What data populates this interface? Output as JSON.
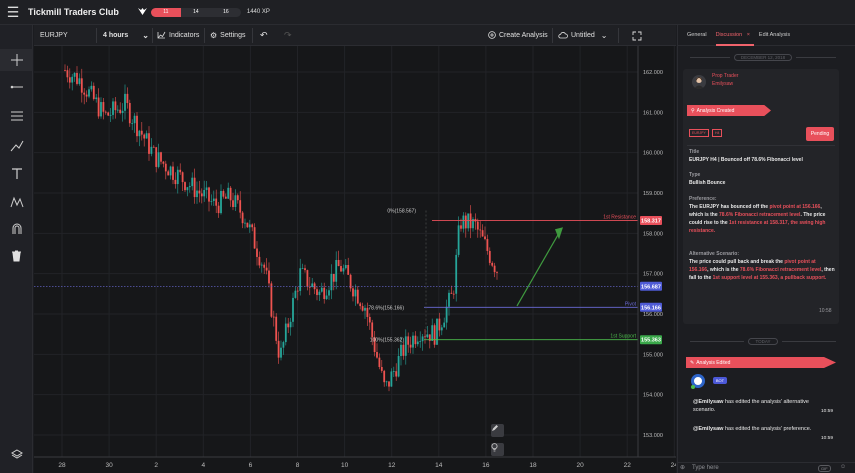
{
  "app": {
    "title": "Tickmill Traders Club",
    "xp_levels": [
      "11",
      "14",
      "16"
    ],
    "xp_total": "1440 XP"
  },
  "toolbar": {
    "symbol": "EURJPY",
    "interval": "4 hours",
    "indicators": "Indicators",
    "settings": "Settings",
    "create_analysis": "Create Analysis",
    "untitled": "Untitled"
  },
  "chart_data": {
    "type": "candlestick",
    "price_axis": [
      "162.000",
      "161.000",
      "160.000",
      "159.000",
      "158.000",
      "157.000",
      "156.000",
      "155.000",
      "154.000",
      "153.000"
    ],
    "time_axis": [
      "28",
      "30",
      "2",
      "4",
      "6",
      "8",
      "10",
      "12",
      "14",
      "16",
      "18",
      "20",
      "22",
      "24",
      "26",
      "28"
    ],
    "price_labels": {
      "resistance": "158.317",
      "current": "156.687",
      "pivot": "156.166",
      "support": "155.363"
    },
    "fib_levels": [
      {
        "label": "0%(158.567)",
        "price": 158.567
      },
      {
        "label": "78.6%(156.166)",
        "price": 156.166
      },
      {
        "label": "100%(155.362)",
        "price": 155.362
      }
    ],
    "lines": {
      "resistance": {
        "label": "1st Resistance",
        "price": 158.317,
        "color": "#e8505b"
      },
      "pivot": {
        "label": "Pivot",
        "price": 156.166,
        "color": "#6b6bd9"
      },
      "support": {
        "label": "1st Support",
        "price": 155.363,
        "color": "#4cbb4c"
      },
      "current": {
        "price": 156.687,
        "color": "#6b6bd9"
      }
    },
    "colors": {
      "up": "#26a69a",
      "down": "#ef5350",
      "arrow": "#3f9a3f"
    }
  },
  "panel": {
    "tabs": [
      "General",
      "Discussion",
      "Edit Analysis"
    ],
    "tab_close": "×",
    "date_1": "DECEMBER 12, 2018",
    "author_role": "Prop Trader",
    "author_name": "Emilysaw",
    "created_label": "Analysis Created",
    "tags": [
      "EURJPY",
      "H4"
    ],
    "status": "Pending",
    "title_label": "Title",
    "title_value": "EURJPY H4 | Bounced off 78.6% Fibonacci level",
    "type_label": "Type",
    "type_value": "Bullish Bounce",
    "pref_label": "Preference:",
    "pref_text_a": "The EURJPY has bounced off the ",
    "pref_hl_1": "pivot point at 156.166",
    "pref_text_b": ", which is the ",
    "pref_hl_2": "78.6% Fibonacci retracement level",
    "pref_text_c": ". The price could rise to the ",
    "pref_hl_3": "1st resistance at 158.317, the swing high resistance.",
    "alt_label": "Alternative Scenario:",
    "alt_text_a": "The price could pull back and break the ",
    "alt_hl_1": "pivot point at 156.166",
    "alt_text_b": ", which is the ",
    "alt_hl_2": "78.6% Fibonacci retracement level",
    "alt_text_c": ", then fall to the ",
    "alt_hl_3": "1st support level at 155.363, a pullback support.",
    "time_1": "10:58",
    "date_2": "TODAY",
    "edited_label": "Analysis Edited",
    "bot_badge": "BOT",
    "edit_1_user": "@Emilysaw",
    "edit_1_text": "has edited the analysis' alternative scenario.",
    "edit_1_time": "10:59",
    "edit_2_user": "@Emilysaw",
    "edit_2_text": "has edited the analysis' preference.",
    "edit_2_time": "10:59",
    "input_placeholder": "Type here",
    "gif_label": "GIF"
  }
}
